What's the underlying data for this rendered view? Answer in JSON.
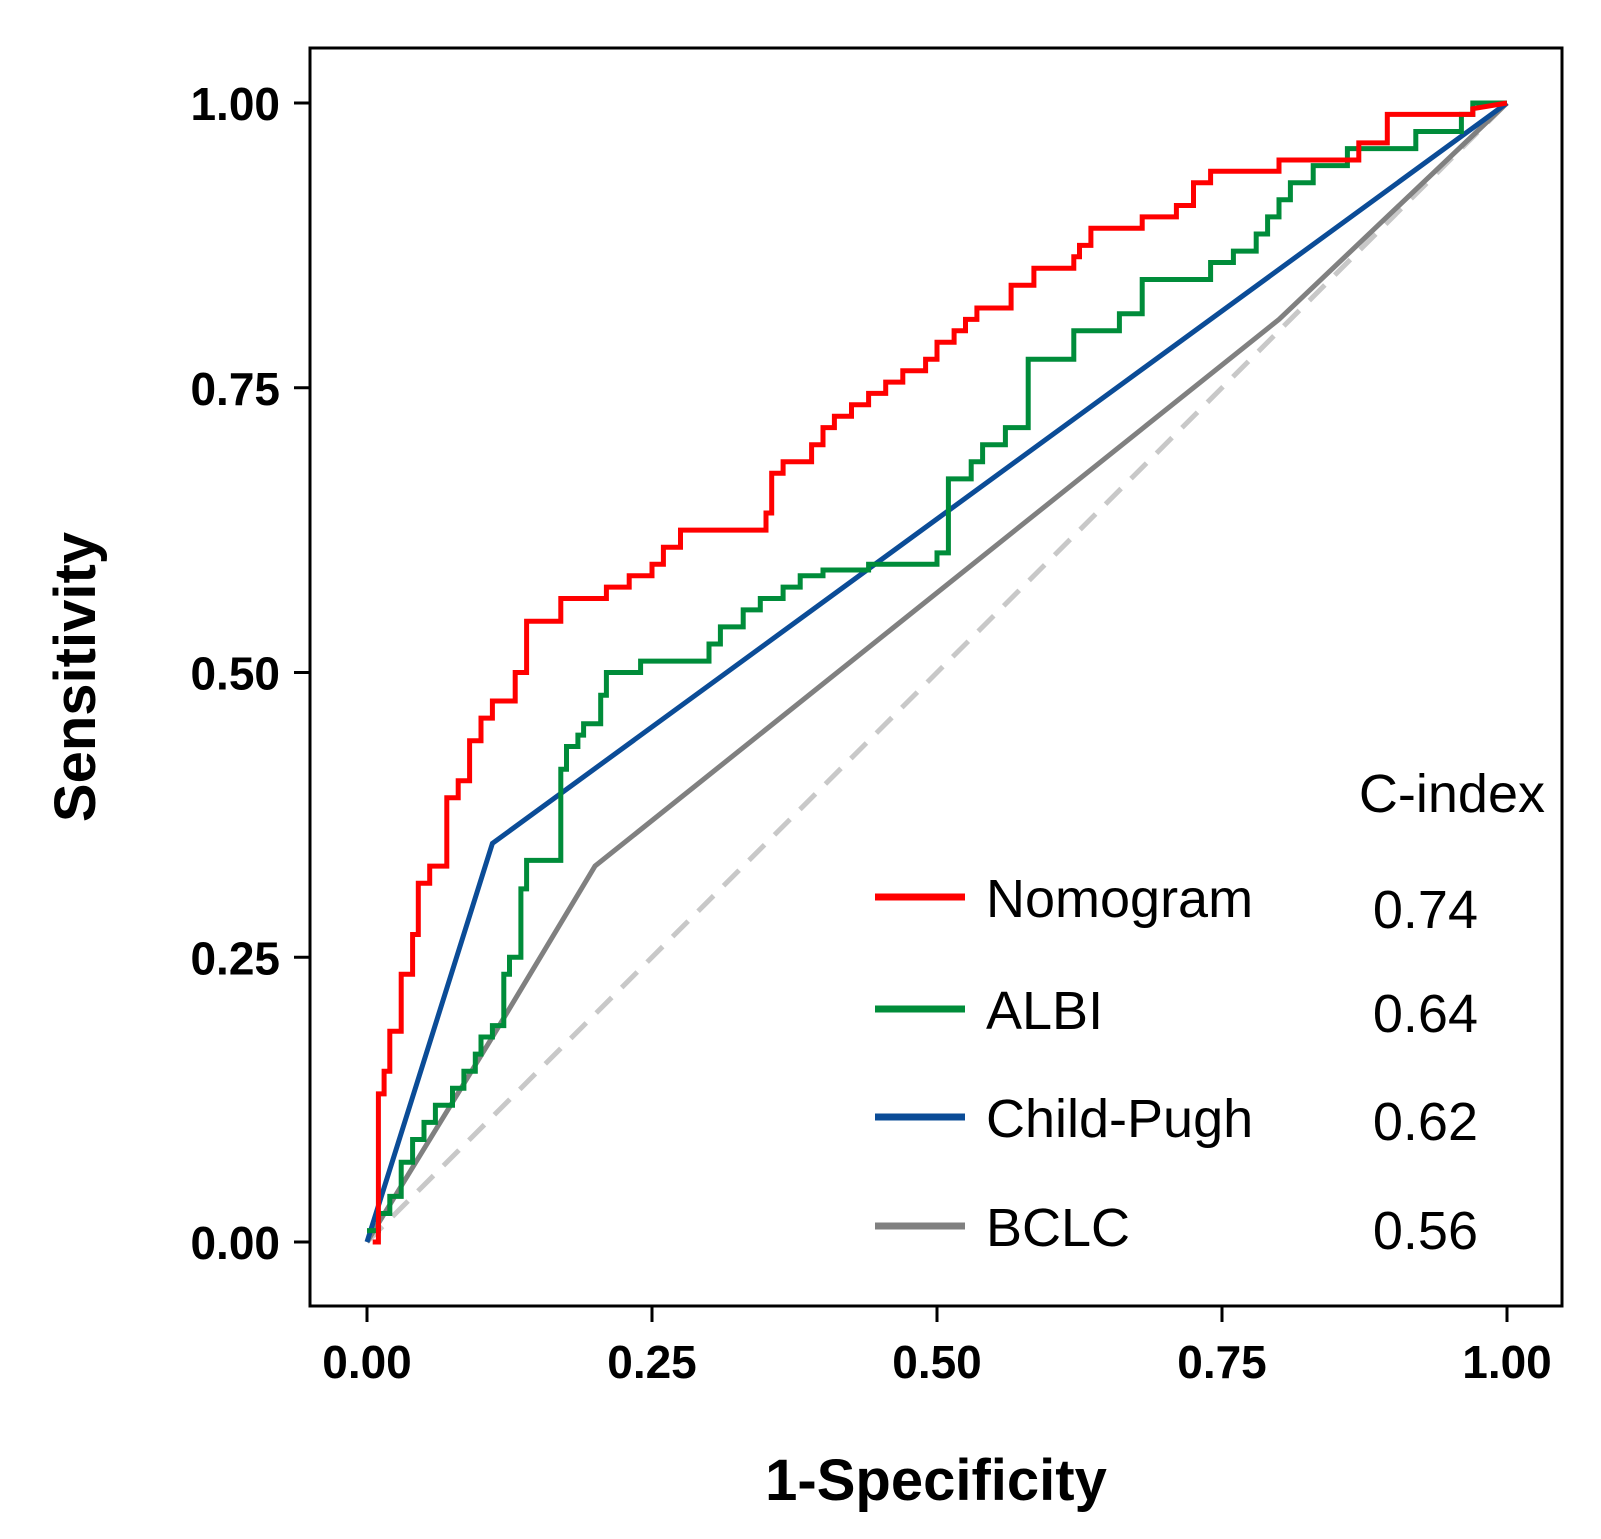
{
  "chart_data": {
    "type": "line",
    "title": "",
    "xlabel": "1-Specificity",
    "ylabel": "Sensitivity",
    "xlim": [
      0,
      1
    ],
    "ylim": [
      0,
      1
    ],
    "x_ticks": [
      "0.00",
      "0.25",
      "0.50",
      "0.75",
      "1.00"
    ],
    "y_ticks": [
      "0.00",
      "0.25",
      "0.50",
      "0.75",
      "1.00"
    ],
    "grid": false,
    "legend": {
      "position": "bottom-right",
      "header": "C-index",
      "entries": [
        {
          "name": "Nomogram",
          "value": "0.74",
          "color": "#ff0000"
        },
        {
          "name": "ALBI",
          "value": "0.64",
          "color": "#008c3a"
        },
        {
          "name": "Child-Pugh",
          "value": "0.62",
          "color": "#0b4c97"
        },
        {
          "name": "BCLC",
          "value": "0.56",
          "color": "#808080"
        }
      ]
    },
    "series": [
      {
        "name": "Nomogram",
        "color": "#ff0000",
        "points": [
          [
            0.005,
            0
          ],
          [
            0.01,
            0
          ],
          [
            0.01,
            0.13
          ],
          [
            0.015,
            0.13
          ],
          [
            0.015,
            0.15
          ],
          [
            0.02,
            0.15
          ],
          [
            0.02,
            0.185
          ],
          [
            0.03,
            0.185
          ],
          [
            0.03,
            0.235
          ],
          [
            0.04,
            0.235
          ],
          [
            0.04,
            0.27
          ],
          [
            0.045,
            0.27
          ],
          [
            0.045,
            0.315
          ],
          [
            0.055,
            0.315
          ],
          [
            0.055,
            0.33
          ],
          [
            0.07,
            0.33
          ],
          [
            0.07,
            0.39
          ],
          [
            0.08,
            0.39
          ],
          [
            0.08,
            0.405
          ],
          [
            0.09,
            0.405
          ],
          [
            0.09,
            0.44
          ],
          [
            0.1,
            0.44
          ],
          [
            0.1,
            0.46
          ],
          [
            0.11,
            0.46
          ],
          [
            0.11,
            0.475
          ],
          [
            0.13,
            0.475
          ],
          [
            0.13,
            0.5
          ],
          [
            0.14,
            0.5
          ],
          [
            0.14,
            0.545
          ],
          [
            0.17,
            0.545
          ],
          [
            0.17,
            0.565
          ],
          [
            0.21,
            0.565
          ],
          [
            0.21,
            0.575
          ],
          [
            0.23,
            0.575
          ],
          [
            0.23,
            0.585
          ],
          [
            0.25,
            0.585
          ],
          [
            0.25,
            0.595
          ],
          [
            0.26,
            0.595
          ],
          [
            0.26,
            0.61
          ],
          [
            0.275,
            0.61
          ],
          [
            0.275,
            0.625
          ],
          [
            0.35,
            0.625
          ],
          [
            0.35,
            0.64
          ],
          [
            0.355,
            0.64
          ],
          [
            0.355,
            0.675
          ],
          [
            0.365,
            0.675
          ],
          [
            0.365,
            0.685
          ],
          [
            0.39,
            0.685
          ],
          [
            0.39,
            0.7
          ],
          [
            0.4,
            0.7
          ],
          [
            0.4,
            0.715
          ],
          [
            0.41,
            0.715
          ],
          [
            0.41,
            0.725
          ],
          [
            0.425,
            0.725
          ],
          [
            0.425,
            0.735
          ],
          [
            0.44,
            0.735
          ],
          [
            0.44,
            0.745
          ],
          [
            0.455,
            0.745
          ],
          [
            0.455,
            0.755
          ],
          [
            0.47,
            0.755
          ],
          [
            0.47,
            0.765
          ],
          [
            0.49,
            0.765
          ],
          [
            0.49,
            0.775
          ],
          [
            0.5,
            0.775
          ],
          [
            0.5,
            0.79
          ],
          [
            0.515,
            0.79
          ],
          [
            0.515,
            0.8
          ],
          [
            0.525,
            0.8
          ],
          [
            0.525,
            0.81
          ],
          [
            0.535,
            0.81
          ],
          [
            0.535,
            0.82
          ],
          [
            0.565,
            0.82
          ],
          [
            0.565,
            0.84
          ],
          [
            0.585,
            0.84
          ],
          [
            0.585,
            0.855
          ],
          [
            0.62,
            0.855
          ],
          [
            0.62,
            0.865
          ],
          [
            0.625,
            0.865
          ],
          [
            0.625,
            0.875
          ],
          [
            0.635,
            0.875
          ],
          [
            0.635,
            0.89
          ],
          [
            0.68,
            0.89
          ],
          [
            0.68,
            0.9
          ],
          [
            0.71,
            0.9
          ],
          [
            0.71,
            0.91
          ],
          [
            0.725,
            0.91
          ],
          [
            0.725,
            0.93
          ],
          [
            0.74,
            0.93
          ],
          [
            0.74,
            0.94
          ],
          [
            0.8,
            0.94
          ],
          [
            0.8,
            0.95
          ],
          [
            0.87,
            0.95
          ],
          [
            0.87,
            0.965
          ],
          [
            0.895,
            0.965
          ],
          [
            0.895,
            0.99
          ],
          [
            0.97,
            0.99
          ],
          [
            0.97,
            0.995
          ],
          [
            1.0,
            1.0
          ]
        ]
      },
      {
        "name": "ALBI",
        "color": "#008c3a",
        "points": [
          [
            0,
            0.01
          ],
          [
            0.01,
            0.01
          ],
          [
            0.01,
            0.025
          ],
          [
            0.02,
            0.025
          ],
          [
            0.02,
            0.04
          ],
          [
            0.03,
            0.04
          ],
          [
            0.03,
            0.07
          ],
          [
            0.04,
            0.07
          ],
          [
            0.04,
            0.09
          ],
          [
            0.05,
            0.09
          ],
          [
            0.05,
            0.105
          ],
          [
            0.06,
            0.105
          ],
          [
            0.06,
            0.12
          ],
          [
            0.075,
            0.12
          ],
          [
            0.075,
            0.135
          ],
          [
            0.085,
            0.135
          ],
          [
            0.085,
            0.15
          ],
          [
            0.095,
            0.15
          ],
          [
            0.095,
            0.165
          ],
          [
            0.1,
            0.165
          ],
          [
            0.1,
            0.18
          ],
          [
            0.11,
            0.18
          ],
          [
            0.11,
            0.19
          ],
          [
            0.12,
            0.19
          ],
          [
            0.12,
            0.235
          ],
          [
            0.125,
            0.235
          ],
          [
            0.125,
            0.25
          ],
          [
            0.135,
            0.25
          ],
          [
            0.135,
            0.31
          ],
          [
            0.14,
            0.31
          ],
          [
            0.14,
            0.335
          ],
          [
            0.17,
            0.335
          ],
          [
            0.17,
            0.415
          ],
          [
            0.175,
            0.415
          ],
          [
            0.175,
            0.435
          ],
          [
            0.185,
            0.435
          ],
          [
            0.185,
            0.445
          ],
          [
            0.19,
            0.445
          ],
          [
            0.19,
            0.455
          ],
          [
            0.205,
            0.455
          ],
          [
            0.205,
            0.48
          ],
          [
            0.21,
            0.48
          ],
          [
            0.21,
            0.5
          ],
          [
            0.24,
            0.5
          ],
          [
            0.24,
            0.51
          ],
          [
            0.3,
            0.51
          ],
          [
            0.3,
            0.525
          ],
          [
            0.31,
            0.525
          ],
          [
            0.31,
            0.54
          ],
          [
            0.33,
            0.54
          ],
          [
            0.33,
            0.555
          ],
          [
            0.345,
            0.555
          ],
          [
            0.345,
            0.565
          ],
          [
            0.365,
            0.565
          ],
          [
            0.365,
            0.575
          ],
          [
            0.38,
            0.575
          ],
          [
            0.38,
            0.585
          ],
          [
            0.4,
            0.585
          ],
          [
            0.4,
            0.59
          ],
          [
            0.44,
            0.59
          ],
          [
            0.44,
            0.595
          ],
          [
            0.5,
            0.595
          ],
          [
            0.5,
            0.605
          ],
          [
            0.51,
            0.605
          ],
          [
            0.51,
            0.67
          ],
          [
            0.53,
            0.67
          ],
          [
            0.53,
            0.685
          ],
          [
            0.54,
            0.685
          ],
          [
            0.54,
            0.7
          ],
          [
            0.56,
            0.7
          ],
          [
            0.56,
            0.715
          ],
          [
            0.58,
            0.715
          ],
          [
            0.58,
            0.775
          ],
          [
            0.62,
            0.775
          ],
          [
            0.62,
            0.8
          ],
          [
            0.66,
            0.8
          ],
          [
            0.66,
            0.815
          ],
          [
            0.68,
            0.815
          ],
          [
            0.68,
            0.845
          ],
          [
            0.74,
            0.845
          ],
          [
            0.74,
            0.86
          ],
          [
            0.76,
            0.86
          ],
          [
            0.76,
            0.87
          ],
          [
            0.78,
            0.87
          ],
          [
            0.78,
            0.885
          ],
          [
            0.79,
            0.885
          ],
          [
            0.79,
            0.9
          ],
          [
            0.8,
            0.9
          ],
          [
            0.8,
            0.915
          ],
          [
            0.81,
            0.915
          ],
          [
            0.81,
            0.93
          ],
          [
            0.83,
            0.93
          ],
          [
            0.83,
            0.945
          ],
          [
            0.86,
            0.945
          ],
          [
            0.86,
            0.96
          ],
          [
            0.92,
            0.96
          ],
          [
            0.92,
            0.975
          ],
          [
            0.96,
            0.975
          ],
          [
            0.96,
            0.99
          ],
          [
            0.97,
            0.99
          ],
          [
            0.97,
            1.0
          ],
          [
            1.0,
            1.0
          ]
        ]
      },
      {
        "name": "Child-Pugh",
        "color": "#0b4c97",
        "points": [
          [
            0,
            0
          ],
          [
            0.11,
            0.35
          ],
          [
            1.0,
            1.0
          ]
        ]
      },
      {
        "name": "BCLC",
        "color": "#808080",
        "points": [
          [
            0,
            0
          ],
          [
            0.11,
            0.18
          ],
          [
            0.2,
            0.33
          ],
          [
            0.8,
            0.81
          ],
          [
            1.0,
            1.0
          ]
        ]
      },
      {
        "name": "Reference",
        "color": "#c8c8c8",
        "dashed": true,
        "points": [
          [
            0,
            0
          ],
          [
            1.0,
            1.0
          ]
        ]
      }
    ]
  }
}
